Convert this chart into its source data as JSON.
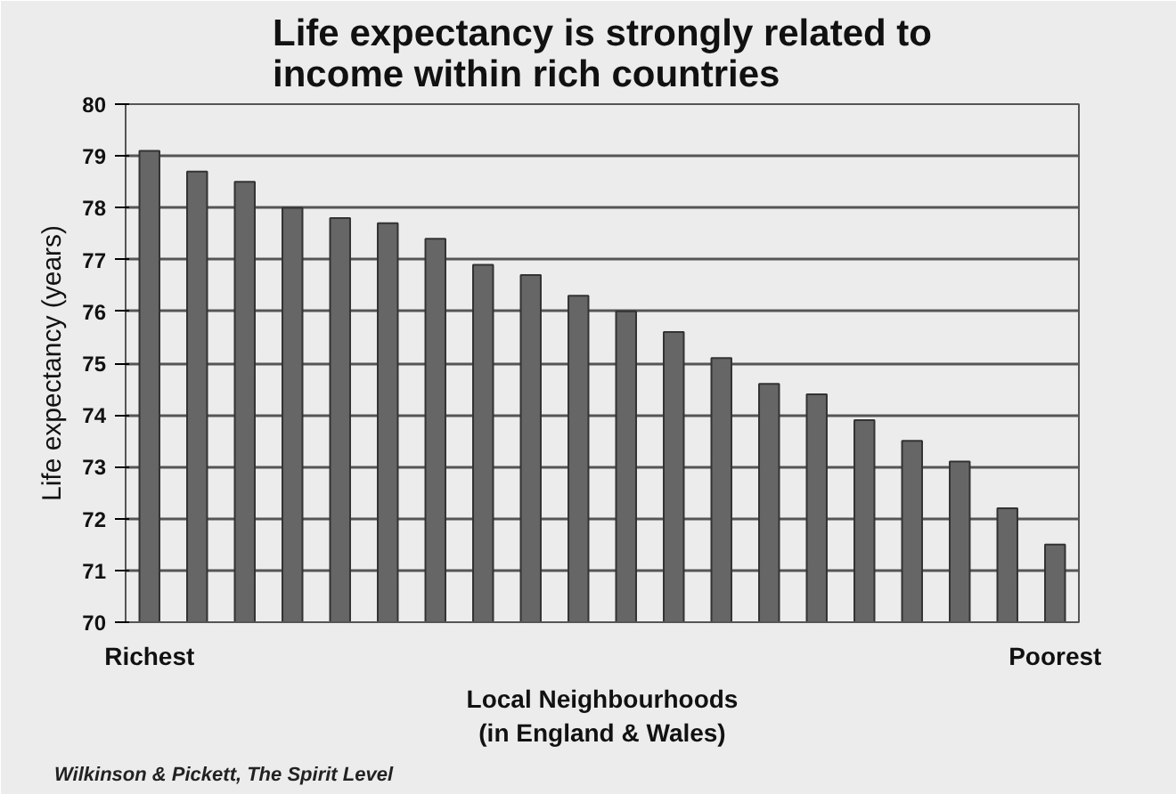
{
  "chart_data": {
    "type": "bar",
    "title": "Life expectancy is strongly related to\nincome within rich countries",
    "xlabel": "Local Neighbourhoods\n(in England & Wales)",
    "ylabel": "Life expectancy (years)",
    "categories": [
      "Richest",
      null,
      null,
      null,
      null,
      null,
      null,
      null,
      null,
      null,
      null,
      null,
      null,
      null,
      null,
      null,
      null,
      null,
      null,
      "Poorest"
    ],
    "values": [
      79.1,
      78.7,
      78.5,
      78.0,
      77.8,
      77.7,
      77.4,
      76.9,
      76.7,
      76.3,
      76.0,
      75.6,
      75.1,
      74.6,
      74.4,
      73.9,
      73.5,
      73.1,
      72.2,
      71.5
    ],
    "color": "#666666",
    "ylim": [
      70,
      80
    ],
    "yticks": [
      70,
      71,
      72,
      73,
      74,
      75,
      76,
      77,
      78,
      79,
      80
    ],
    "grid": "y",
    "annotations": [
      "Wilkinson & Pickett, The Spirit Level"
    ]
  }
}
